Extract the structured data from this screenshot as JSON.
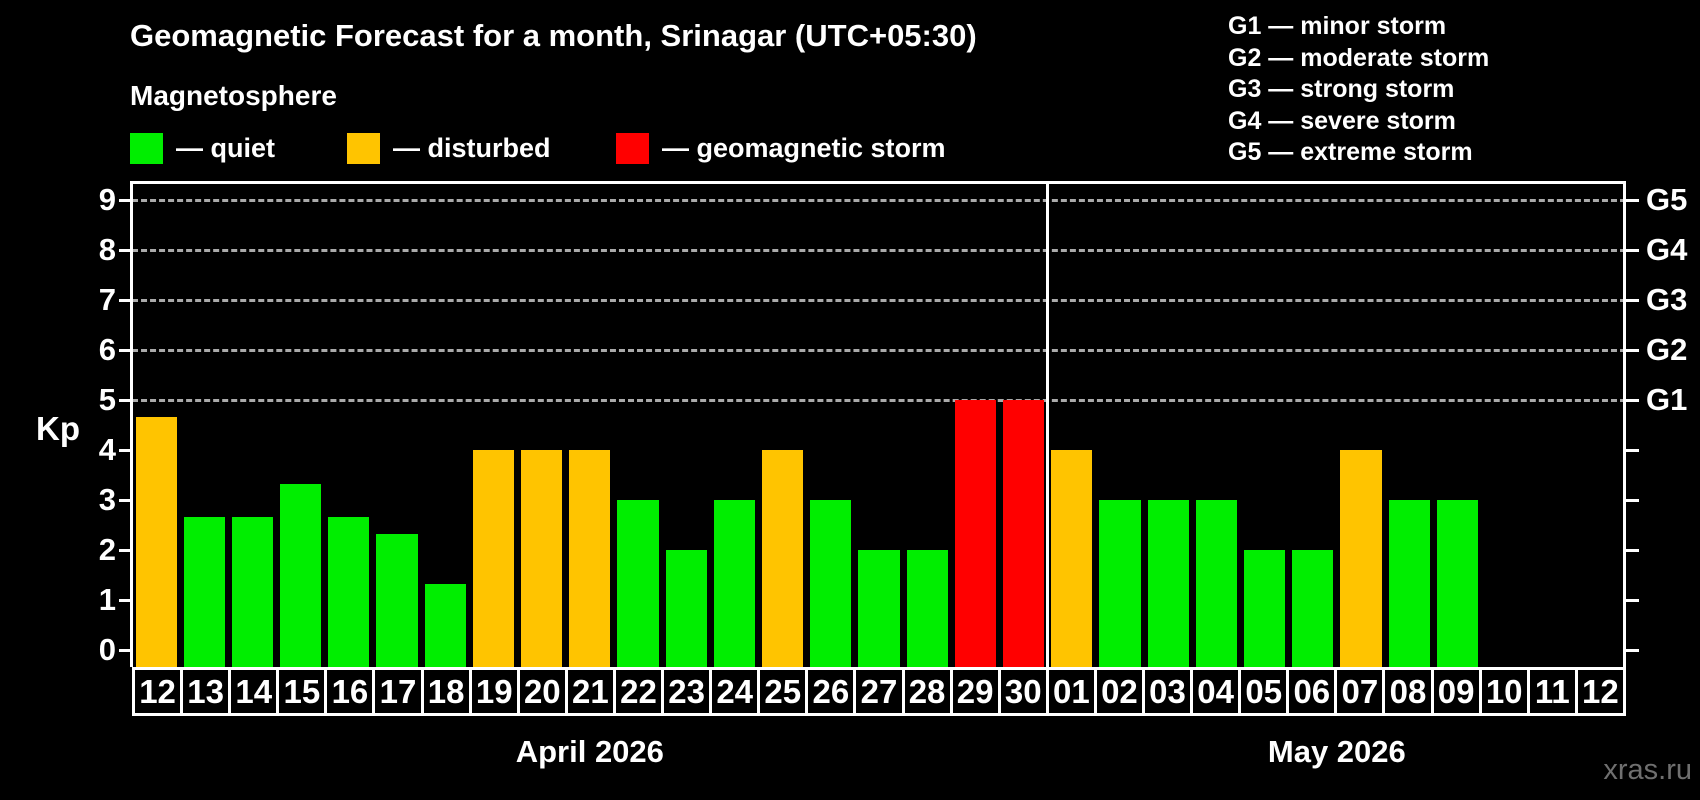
{
  "title": "Geomagnetic Forecast for a month, Srinagar (UTC+05:30)",
  "subtitle": "Magnetosphere",
  "y_axis_label": "Kp",
  "watermark": "xras.ru",
  "colors": {
    "quiet": "#00ee00",
    "disturbed": "#ffc400",
    "storm": "#ff0000",
    "grid": "#aaaaaa",
    "frame": "#ffffff",
    "text": "#ffffff",
    "watermark": "#6f6f6f",
    "background": "#000000"
  },
  "legend": [
    {
      "key": "quiet",
      "label": "— quiet"
    },
    {
      "key": "disturbed",
      "label": "— disturbed"
    },
    {
      "key": "storm",
      "label": "— geomagnetic storm"
    }
  ],
  "storm_scale_legend": [
    "G1 — minor storm",
    "G2 — moderate storm",
    "G3 — strong storm",
    "G4 — severe storm",
    "G5 — extreme storm"
  ],
  "y_ticks": [
    0,
    1,
    2,
    3,
    4,
    5,
    6,
    7,
    8,
    9
  ],
  "right_axis_labels": [
    {
      "text": "G1",
      "kp": 5
    },
    {
      "text": "G2",
      "kp": 6
    },
    {
      "text": "G3",
      "kp": 7
    },
    {
      "text": "G4",
      "kp": 8
    },
    {
      "text": "G5",
      "kp": 9
    }
  ],
  "months": [
    {
      "label": "April 2026",
      "days": 19
    },
    {
      "label": "May 2026",
      "days": 12
    }
  ],
  "chart_data": {
    "type": "bar",
    "title": "Geomagnetic Forecast for a month, Srinagar (UTC+05:30)",
    "ylabel": "Kp",
    "ylim": [
      0,
      9
    ],
    "gridlines_at_kp": [
      5,
      6,
      7,
      8,
      9
    ],
    "legend_position": "top-left",
    "points": [
      {
        "month": "April 2026",
        "day": "12",
        "kp": 4.67,
        "status": "disturbed"
      },
      {
        "month": "April 2026",
        "day": "13",
        "kp": 2.67,
        "status": "quiet"
      },
      {
        "month": "April 2026",
        "day": "14",
        "kp": 2.67,
        "status": "quiet"
      },
      {
        "month": "April 2026",
        "day": "15",
        "kp": 3.33,
        "status": "quiet"
      },
      {
        "month": "April 2026",
        "day": "16",
        "kp": 2.67,
        "status": "quiet"
      },
      {
        "month": "April 2026",
        "day": "17",
        "kp": 2.33,
        "status": "quiet"
      },
      {
        "month": "April 2026",
        "day": "18",
        "kp": 1.33,
        "status": "quiet"
      },
      {
        "month": "April 2026",
        "day": "19",
        "kp": 4,
        "status": "disturbed"
      },
      {
        "month": "April 2026",
        "day": "20",
        "kp": 4,
        "status": "disturbed"
      },
      {
        "month": "April 2026",
        "day": "21",
        "kp": 4,
        "status": "disturbed"
      },
      {
        "month": "April 2026",
        "day": "22",
        "kp": 3,
        "status": "quiet"
      },
      {
        "month": "April 2026",
        "day": "23",
        "kp": 2,
        "status": "quiet"
      },
      {
        "month": "April 2026",
        "day": "24",
        "kp": 3,
        "status": "quiet"
      },
      {
        "month": "April 2026",
        "day": "25",
        "kp": 4,
        "status": "disturbed"
      },
      {
        "month": "April 2026",
        "day": "26",
        "kp": 3,
        "status": "quiet"
      },
      {
        "month": "April 2026",
        "day": "27",
        "kp": 2,
        "status": "quiet"
      },
      {
        "month": "April 2026",
        "day": "28",
        "kp": 2,
        "status": "quiet"
      },
      {
        "month": "April 2026",
        "day": "29",
        "kp": 5,
        "status": "storm"
      },
      {
        "month": "April 2026",
        "day": "30",
        "kp": 5,
        "status": "storm"
      },
      {
        "month": "May 2026",
        "day": "01",
        "kp": 4,
        "status": "disturbed"
      },
      {
        "month": "May 2026",
        "day": "02",
        "kp": 3,
        "status": "quiet"
      },
      {
        "month": "May 2026",
        "day": "03",
        "kp": 3,
        "status": "quiet"
      },
      {
        "month": "May 2026",
        "day": "04",
        "kp": 3,
        "status": "quiet"
      },
      {
        "month": "May 2026",
        "day": "05",
        "kp": 2,
        "status": "quiet"
      },
      {
        "month": "May 2026",
        "day": "06",
        "kp": 2,
        "status": "quiet"
      },
      {
        "month": "May 2026",
        "day": "07",
        "kp": 4,
        "status": "disturbed"
      },
      {
        "month": "May 2026",
        "day": "08",
        "kp": 3,
        "status": "quiet"
      },
      {
        "month": "May 2026",
        "day": "09",
        "kp": 3,
        "status": "quiet"
      },
      {
        "month": "May 2026",
        "day": "10",
        "kp": null,
        "status": "none"
      },
      {
        "month": "May 2026",
        "day": "11",
        "kp": null,
        "status": "none"
      },
      {
        "month": "May 2026",
        "day": "12",
        "kp": null,
        "status": "none"
      }
    ]
  }
}
